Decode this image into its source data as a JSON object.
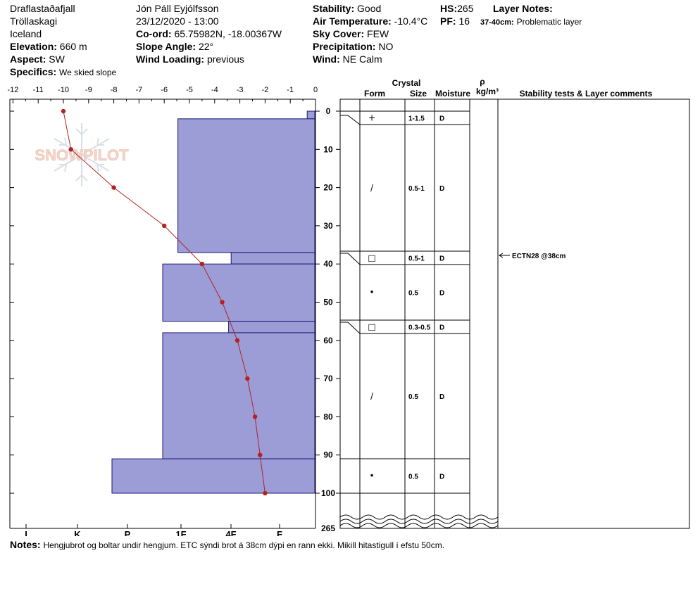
{
  "header": {
    "location": "Draflastaðafjall",
    "region": "Tröllaskagi",
    "country": "Iceland",
    "elevation_label": "Elevation:",
    "elevation_value": "660 m",
    "aspect_label": "Aspect:",
    "aspect_value": "SW",
    "specifics_label": "Specifics:",
    "specifics_value": "We skied slope",
    "observer": "Jón Páll  Eyjólfsson",
    "datetime": "23/12/2020 - 13:00",
    "coord_label": "Co-ord:",
    "coord_value": "65.75982N, -18.00367W",
    "slope_label": "Slope Angle:",
    "slope_value": "22°",
    "wind_loading_label": "Wind Loading:",
    "wind_loading_value": "previous",
    "stability_label": "Stability:",
    "stability_value": "Good",
    "air_temp_label": "Air Temperature:",
    "air_temp_value": "-10.4°C",
    "sky_label": "Sky Cover:",
    "sky_value": "FEW",
    "precip_label": "Precipitation:",
    "precip_value": "NO",
    "wind_label": "Wind:",
    "wind_value": "NE Calm",
    "hs_label": "HS:",
    "hs_value": "265",
    "pf_label": "PF:",
    "pf_value": "16",
    "layer_notes_label": "Layer Notes:",
    "layer_note_range": "37-40cm:",
    "layer_note_text": "Problematic layer"
  },
  "columns": {
    "crystal": "Crystal",
    "form": "Form",
    "size": "Size",
    "moisture": "Moisture",
    "rho": "ρ",
    "density_unit": "kg/m³",
    "stability": "Stability tests & Layer comments"
  },
  "watermark": "SNOWPILOT",
  "chart_data": {
    "type": "snow-profile",
    "temperature_axis": {
      "ticks": [
        "-12",
        "-11",
        "-10",
        "-9",
        "-8",
        "-7",
        "-6",
        "-5",
        "-4",
        "-3",
        "-2",
        "-1",
        "0"
      ],
      "range": [
        -12,
        0
      ]
    },
    "depth_axis": {
      "ticks": [
        "0",
        "10",
        "20",
        "30",
        "40",
        "50",
        "60",
        "70",
        "80",
        "90",
        "100"
      ],
      "max_label": "265",
      "range": [
        0,
        100
      ]
    },
    "hardness_axis": {
      "ticks": [
        "I",
        "K",
        "P",
        "1F",
        "4F",
        "F"
      ]
    },
    "temperature_profile": [
      {
        "depth": 0,
        "temp": -10
      },
      {
        "depth": 10,
        "temp": -9.7
      },
      {
        "depth": 20,
        "temp": -8
      },
      {
        "depth": 30,
        "temp": -6
      },
      {
        "depth": 40,
        "temp": -4.5
      },
      {
        "depth": 50,
        "temp": -3.7
      },
      {
        "depth": 60,
        "temp": -3.1
      },
      {
        "depth": 70,
        "temp": -2.7
      },
      {
        "depth": 80,
        "temp": -2.4
      },
      {
        "depth": 90,
        "temp": -2.2
      },
      {
        "depth": 100,
        "temp": -2
      }
    ],
    "hardness_layers": [
      {
        "top": 0,
        "bottom": 2,
        "hardness_index": 0.3
      },
      {
        "top": 2,
        "bottom": 37,
        "hardness_index": 5.4
      },
      {
        "top": 37,
        "bottom": 40,
        "hardness_index": 3.3
      },
      {
        "top": 40,
        "bottom": 55,
        "hardness_index": 6.0
      },
      {
        "top": 55,
        "bottom": 58,
        "hardness_index": 3.4
      },
      {
        "top": 58,
        "bottom": 91,
        "hardness_index": 6.0
      },
      {
        "top": 91,
        "bottom": 100,
        "hardness_index": 8.0
      }
    ],
    "layers": [
      {
        "top": 0,
        "bottom": 4,
        "form": "+",
        "size": "1-1.5",
        "moisture": "D"
      },
      {
        "top": 4,
        "bottom": 37,
        "form": "/",
        "size": "0.5-1",
        "moisture": "D"
      },
      {
        "top": 37,
        "bottom": 40,
        "form": "□",
        "size": "0.5-1",
        "moisture": "D"
      },
      {
        "top": 40,
        "bottom": 55,
        "form": "•",
        "size": "0.5",
        "moisture": "D"
      },
      {
        "top": 55,
        "bottom": 58,
        "form": "□",
        "size": "0.3-0.5",
        "moisture": "D"
      },
      {
        "top": 58,
        "bottom": 91,
        "form": "/",
        "size": "0.5",
        "moisture": "D"
      },
      {
        "top": 91,
        "bottom": 100,
        "form": "•",
        "size": "0.5",
        "moisture": "D"
      }
    ],
    "stability_tests": [
      {
        "depth": 38,
        "label": "ECTN28 @38cm"
      }
    ]
  },
  "notes": {
    "label": "Notes:",
    "text": "Hengjubrot og boltar undir hengjum. ETC sýndi brot á 38cm dýpi en rann ekki. Mikill hitastigull í efstu 50cm."
  },
  "colors": {
    "hardness_fill": "#9c9cd7",
    "temperature_line": "#b22222"
  }
}
